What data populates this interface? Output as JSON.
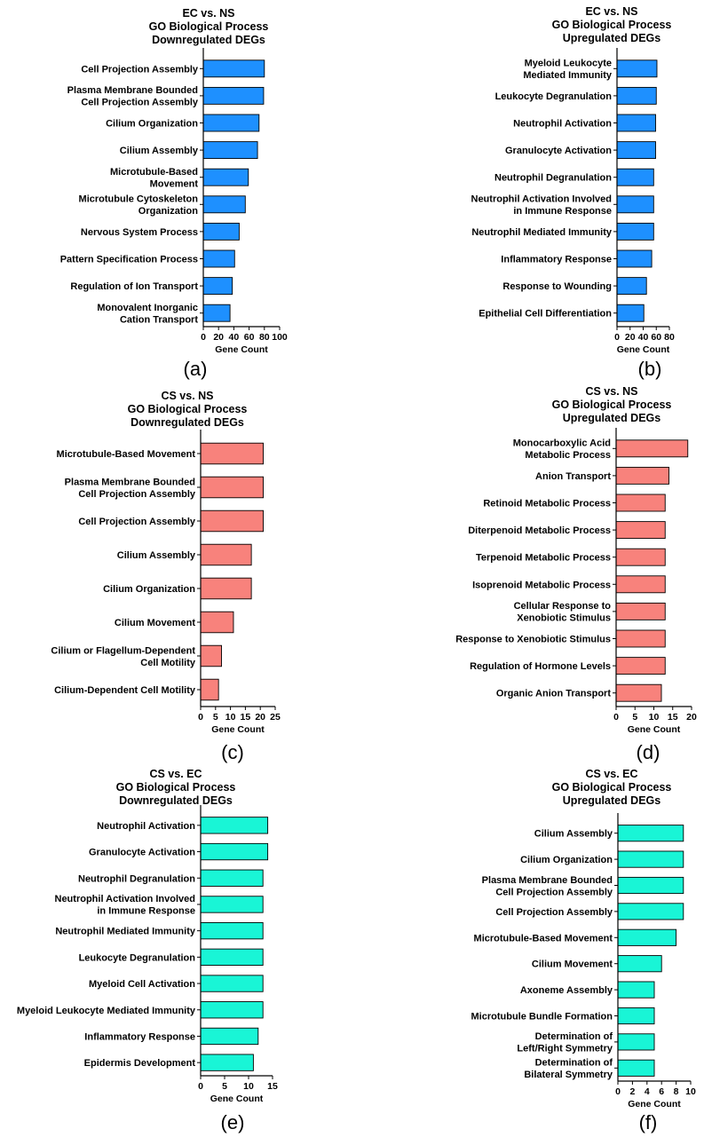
{
  "colors": {
    "blue": "#1E90FF",
    "red": "#F8827C",
    "cyan": "#19F5D6",
    "stroke": "#000000"
  },
  "chart_data": [
    {
      "id": "a",
      "type": "bar",
      "orientation": "horizontal",
      "panel_label": "(a)",
      "title": [
        "EC vs. NS",
        "GO Biological Process",
        "Downregulated DEGs"
      ],
      "xlabel": "Gene Count",
      "ylabel": "",
      "xlim": [
        0,
        100
      ],
      "xticks": [
        0,
        20,
        40,
        60,
        80,
        100
      ],
      "color": "blue",
      "grid": false,
      "categories": [
        [
          "Cell Projection Assembly"
        ],
        [
          "Plasma Membrane Bounded",
          "Cell Projection Assembly"
        ],
        [
          "Cilium Organization"
        ],
        [
          "Cilium Assembly"
        ],
        [
          "Microtubule-Based",
          "Movement"
        ],
        [
          "Microtubule Cytoskeleton",
          "Organization"
        ],
        [
          "Nervous System Process"
        ],
        [
          "Pattern Specification Process"
        ],
        [
          "Regulation of Ion Transport"
        ],
        [
          "Monovalent Inorganic",
          "Cation Transport"
        ]
      ],
      "values": [
        80,
        79,
        73,
        71,
        59,
        55,
        47,
        41,
        38,
        35
      ]
    },
    {
      "id": "b",
      "type": "bar",
      "orientation": "horizontal",
      "panel_label": "(b)",
      "title": [
        "EC vs. NS",
        "GO Biological Process",
        "Upregulated DEGs"
      ],
      "xlabel": "Gene Count",
      "ylabel": "",
      "xlim": [
        0,
        80
      ],
      "xticks": [
        0,
        20,
        40,
        60,
        80
      ],
      "color": "blue",
      "grid": false,
      "categories": [
        [
          "Myeloid Leukocyte",
          "Mediated Immunity"
        ],
        [
          "Leukocyte Degranulation"
        ],
        [
          "Neutrophil Activation"
        ],
        [
          "Granulocyte Activation"
        ],
        [
          "Neutrophil Degranulation"
        ],
        [
          "Neutrophil Activation Involved",
          "in Immune Response"
        ],
        [
          "Neutrophil Mediated Immunity"
        ],
        [
          "Inflammatory Response"
        ],
        [
          "Response to Wounding"
        ],
        [
          "Epithelial Cell Differentiation"
        ]
      ],
      "values": [
        61,
        60,
        59,
        59,
        56,
        56,
        56,
        53,
        45,
        41
      ]
    },
    {
      "id": "c",
      "type": "bar",
      "orientation": "horizontal",
      "panel_label": "(c)",
      "title": [
        "CS vs. NS",
        "GO Biological Process",
        "Downregulated DEGs"
      ],
      "xlabel": "Gene Count",
      "ylabel": "",
      "xlim": [
        0,
        25
      ],
      "xticks": [
        0,
        5,
        10,
        15,
        20,
        25
      ],
      "color": "red",
      "grid": false,
      "categories": [
        [
          "Microtubule-Based Movement"
        ],
        [
          "Plasma Membrane Bounded",
          "Cell Projection Assembly"
        ],
        [
          "Cell Projection Assembly"
        ],
        [
          "Cilium Assembly"
        ],
        [
          "Cilium Organization"
        ],
        [
          "Cilium Movement"
        ],
        [
          "Cilium or Flagellum-Dependent",
          "Cell Motility"
        ],
        [
          "Cilium-Dependent Cell Motility"
        ]
      ],
      "values": [
        21,
        21,
        21,
        17,
        17,
        11,
        7,
        6
      ]
    },
    {
      "id": "d",
      "type": "bar",
      "orientation": "horizontal",
      "panel_label": "(d)",
      "title": [
        "CS vs. NS",
        "GO Biological Process",
        "Upregulated DEGs"
      ],
      "xlabel": "Gene Count",
      "ylabel": "",
      "xlim": [
        0,
        20
      ],
      "xticks": [
        0,
        5,
        10,
        15,
        20
      ],
      "color": "red",
      "grid": false,
      "categories": [
        [
          "Monocarboxylic Acid",
          "Metabolic Process"
        ],
        [
          "Anion Transport"
        ],
        [
          "Retinoid Metabolic Process"
        ],
        [
          "Diterpenoid Metabolic Process"
        ],
        [
          "Terpenoid Metabolic Process"
        ],
        [
          "Isoprenoid Metabolic Process"
        ],
        [
          "Cellular Response to",
          "Xenobiotic Stimulus"
        ],
        [
          "Response to Xenobiotic Stimulus"
        ],
        [
          "Regulation of Hormone Levels"
        ],
        [
          "Organic Anion Transport"
        ]
      ],
      "values": [
        19,
        14,
        13,
        13,
        13,
        13,
        13,
        13,
        13,
        12
      ]
    },
    {
      "id": "e",
      "type": "bar",
      "orientation": "horizontal",
      "panel_label": "(e)",
      "title": [
        "CS vs. EC",
        "GO Biological Process",
        "Downregulated DEGs"
      ],
      "xlabel": "Gene Count",
      "ylabel": "",
      "xlim": [
        0,
        15
      ],
      "xticks": [
        0,
        5,
        10,
        15
      ],
      "color": "cyan",
      "grid": false,
      "categories": [
        [
          "Neutrophil Activation"
        ],
        [
          "Granulocyte Activation"
        ],
        [
          "Neutrophil Degranulation"
        ],
        [
          "Neutrophil Activation Involved",
          "in Immune Response"
        ],
        [
          "Neutrophil Mediated Immunity"
        ],
        [
          "Leukocyte Degranulation"
        ],
        [
          "Myeloid Cell Activation"
        ],
        [
          "Myeloid Leukocyte Mediated Immunity"
        ],
        [
          "Inflammatory Response"
        ],
        [
          "Epidermis Development"
        ]
      ],
      "values": [
        14,
        14,
        13,
        13,
        13,
        13,
        13,
        13,
        12,
        11
      ]
    },
    {
      "id": "f",
      "type": "bar",
      "orientation": "horizontal",
      "panel_label": "(f)",
      "title": [
        "CS vs. EC",
        "GO Biological Process",
        "Upregulated DEGs"
      ],
      "xlabel": "Gene Count",
      "ylabel": "",
      "xlim": [
        0,
        10
      ],
      "xticks": [
        0,
        2,
        4,
        6,
        8,
        10
      ],
      "color": "cyan",
      "grid": false,
      "categories": [
        [
          "Cilium Assembly"
        ],
        [
          "Cilium Organization"
        ],
        [
          "Plasma Membrane Bounded",
          "Cell Projection Assembly"
        ],
        [
          "Cell Projection Assembly"
        ],
        [
          "Microtubule-Based Movement"
        ],
        [
          "Cilium Movement"
        ],
        [
          "Axoneme Assembly"
        ],
        [
          "Microtubule Bundle Formation"
        ],
        [
          "Determination of",
          "Left/Right Symmetry"
        ],
        [
          "Determination of",
          "Bilateral Symmetry"
        ]
      ],
      "values": [
        9,
        9,
        9,
        9,
        8,
        6,
        5,
        5,
        5,
        5
      ]
    }
  ]
}
